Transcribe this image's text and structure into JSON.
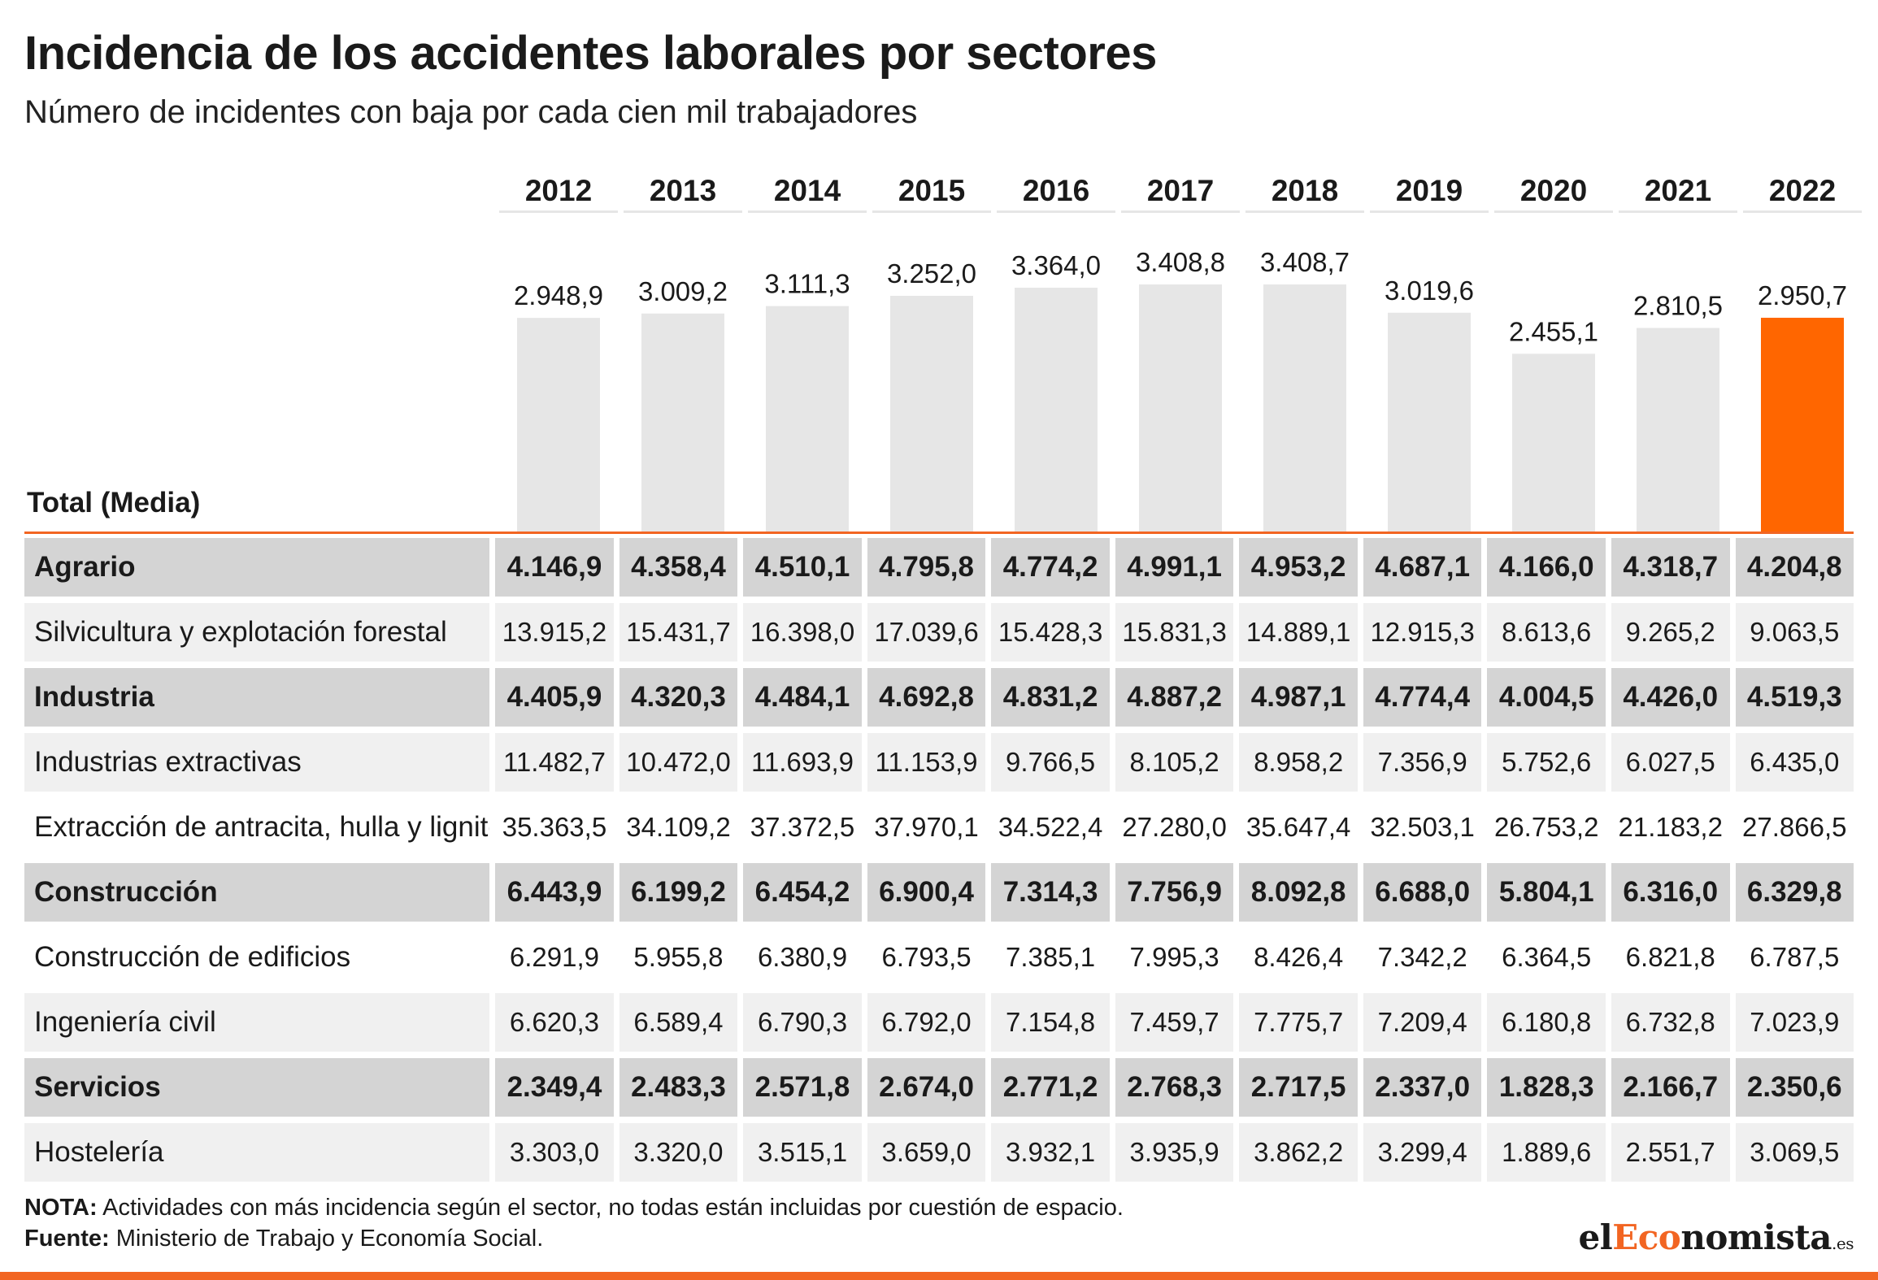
{
  "title": "Incidencia de los accidentes laborales por sectores",
  "subtitle": "Número de incidentes con baja por cada cien mil trabajadores",
  "colors": {
    "bar_default": "#e6e6e6",
    "bar_highlight": "#ff6600",
    "accent_line": "#f26522",
    "sector_row": "#d4d4d4",
    "shaded_row": "#f0f0f0"
  },
  "chart_data": {
    "type": "bar",
    "row_label": "Total (Media)",
    "categories": [
      "2012",
      "2013",
      "2014",
      "2015",
      "2016",
      "2017",
      "2018",
      "2019",
      "2020",
      "2021",
      "2022"
    ],
    "values": [
      2948.9,
      3009.2,
      3111.3,
      3252.0,
      3364.0,
      3408.8,
      3408.7,
      3019.6,
      2455.1,
      2810.5,
      2950.7
    ],
    "value_labels": [
      "2.948,9",
      "3.009,2",
      "3.111,3",
      "3.252,0",
      "3.364,0",
      "3.408,8",
      "3.408,7",
      "3.019,6",
      "2.455,1",
      "2.810,5",
      "2.950,7"
    ],
    "highlight_category": "2022",
    "ylim": [
      0,
      3408.8
    ],
    "grid": false
  },
  "table": {
    "rows": [
      {
        "label": "Agrario",
        "kind": "sector",
        "values": [
          "4.146,9",
          "4.358,4",
          "4.510,1",
          "4.795,8",
          "4.774,2",
          "4.991,1",
          "4.953,2",
          "4.687,1",
          "4.166,0",
          "4.318,7",
          "4.204,8"
        ]
      },
      {
        "label": "Silvicultura y explotación forestal",
        "kind": "sub-shade",
        "values": [
          "13.915,2",
          "15.431,7",
          "16.398,0",
          "17.039,6",
          "15.428,3",
          "15.831,3",
          "14.889,1",
          "12.915,3",
          "8.613,6",
          "9.265,2",
          "9.063,5"
        ]
      },
      {
        "label": "Industria",
        "kind": "sector",
        "values": [
          "4.405,9",
          "4.320,3",
          "4.484,1",
          "4.692,8",
          "4.831,2",
          "4.887,2",
          "4.987,1",
          "4.774,4",
          "4.004,5",
          "4.426,0",
          "4.519,3"
        ]
      },
      {
        "label": "Industrias extractivas",
        "kind": "sub-shade",
        "values": [
          "11.482,7",
          "10.472,0",
          "11.693,9",
          "11.153,9",
          "9.766,5",
          "8.105,2",
          "8.958,2",
          "7.356,9",
          "5.752,6",
          "6.027,5",
          "6.435,0"
        ]
      },
      {
        "label": "Extracción de antracita, hulla y lignito",
        "kind": "sub",
        "values": [
          "35.363,5",
          "34.109,2",
          "37.372,5",
          "37.970,1",
          "34.522,4",
          "27.280,0",
          "35.647,4",
          "32.503,1",
          "26.753,2",
          "21.183,2",
          "27.866,5"
        ]
      },
      {
        "label": "Construcción",
        "kind": "sector",
        "values": [
          "6.443,9",
          "6.199,2",
          "6.454,2",
          "6.900,4",
          "7.314,3",
          "7.756,9",
          "8.092,8",
          "6.688,0",
          "5.804,1",
          "6.316,0",
          "6.329,8"
        ]
      },
      {
        "label": "Construcción de edificios",
        "kind": "sub",
        "values": [
          "6.291,9",
          "5.955,8",
          "6.380,9",
          "6.793,5",
          "7.385,1",
          "7.995,3",
          "8.426,4",
          "7.342,2",
          "6.364,5",
          "6.821,8",
          "6.787,5"
        ]
      },
      {
        "label": "Ingeniería civil",
        "kind": "sub-shade",
        "values": [
          "6.620,3",
          "6.589,4",
          "6.790,3",
          "6.792,0",
          "7.154,8",
          "7.459,7",
          "7.775,7",
          "7.209,4",
          "6.180,8",
          "6.732,8",
          "7.023,9"
        ]
      },
      {
        "label": "Servicios",
        "kind": "sector",
        "values": [
          "2.349,4",
          "2.483,3",
          "2.571,8",
          "2.674,0",
          "2.771,2",
          "2.768,3",
          "2.717,5",
          "2.337,0",
          "1.828,3",
          "2.166,7",
          "2.350,6"
        ]
      },
      {
        "label": "Hostelería",
        "kind": "sub-shade",
        "values": [
          "3.303,0",
          "3.320,0",
          "3.515,1",
          "3.659,0",
          "3.932,1",
          "3.935,9",
          "3.862,2",
          "3.299,4",
          "1.889,6",
          "2.551,7",
          "3.069,5"
        ]
      }
    ]
  },
  "footer": {
    "note_label": "NOTA:",
    "note_text": " Actividades con más incidencia según el sector, no todas están incluidas por cuestión de espacio.",
    "source_label": "Fuente:",
    "source_text": " Ministerio de Trabajo y Economía Social.",
    "logo_prefix": "el",
    "logo_accent": "Eco",
    "logo_suffix": "nomista",
    "logo_tld": ".es"
  }
}
